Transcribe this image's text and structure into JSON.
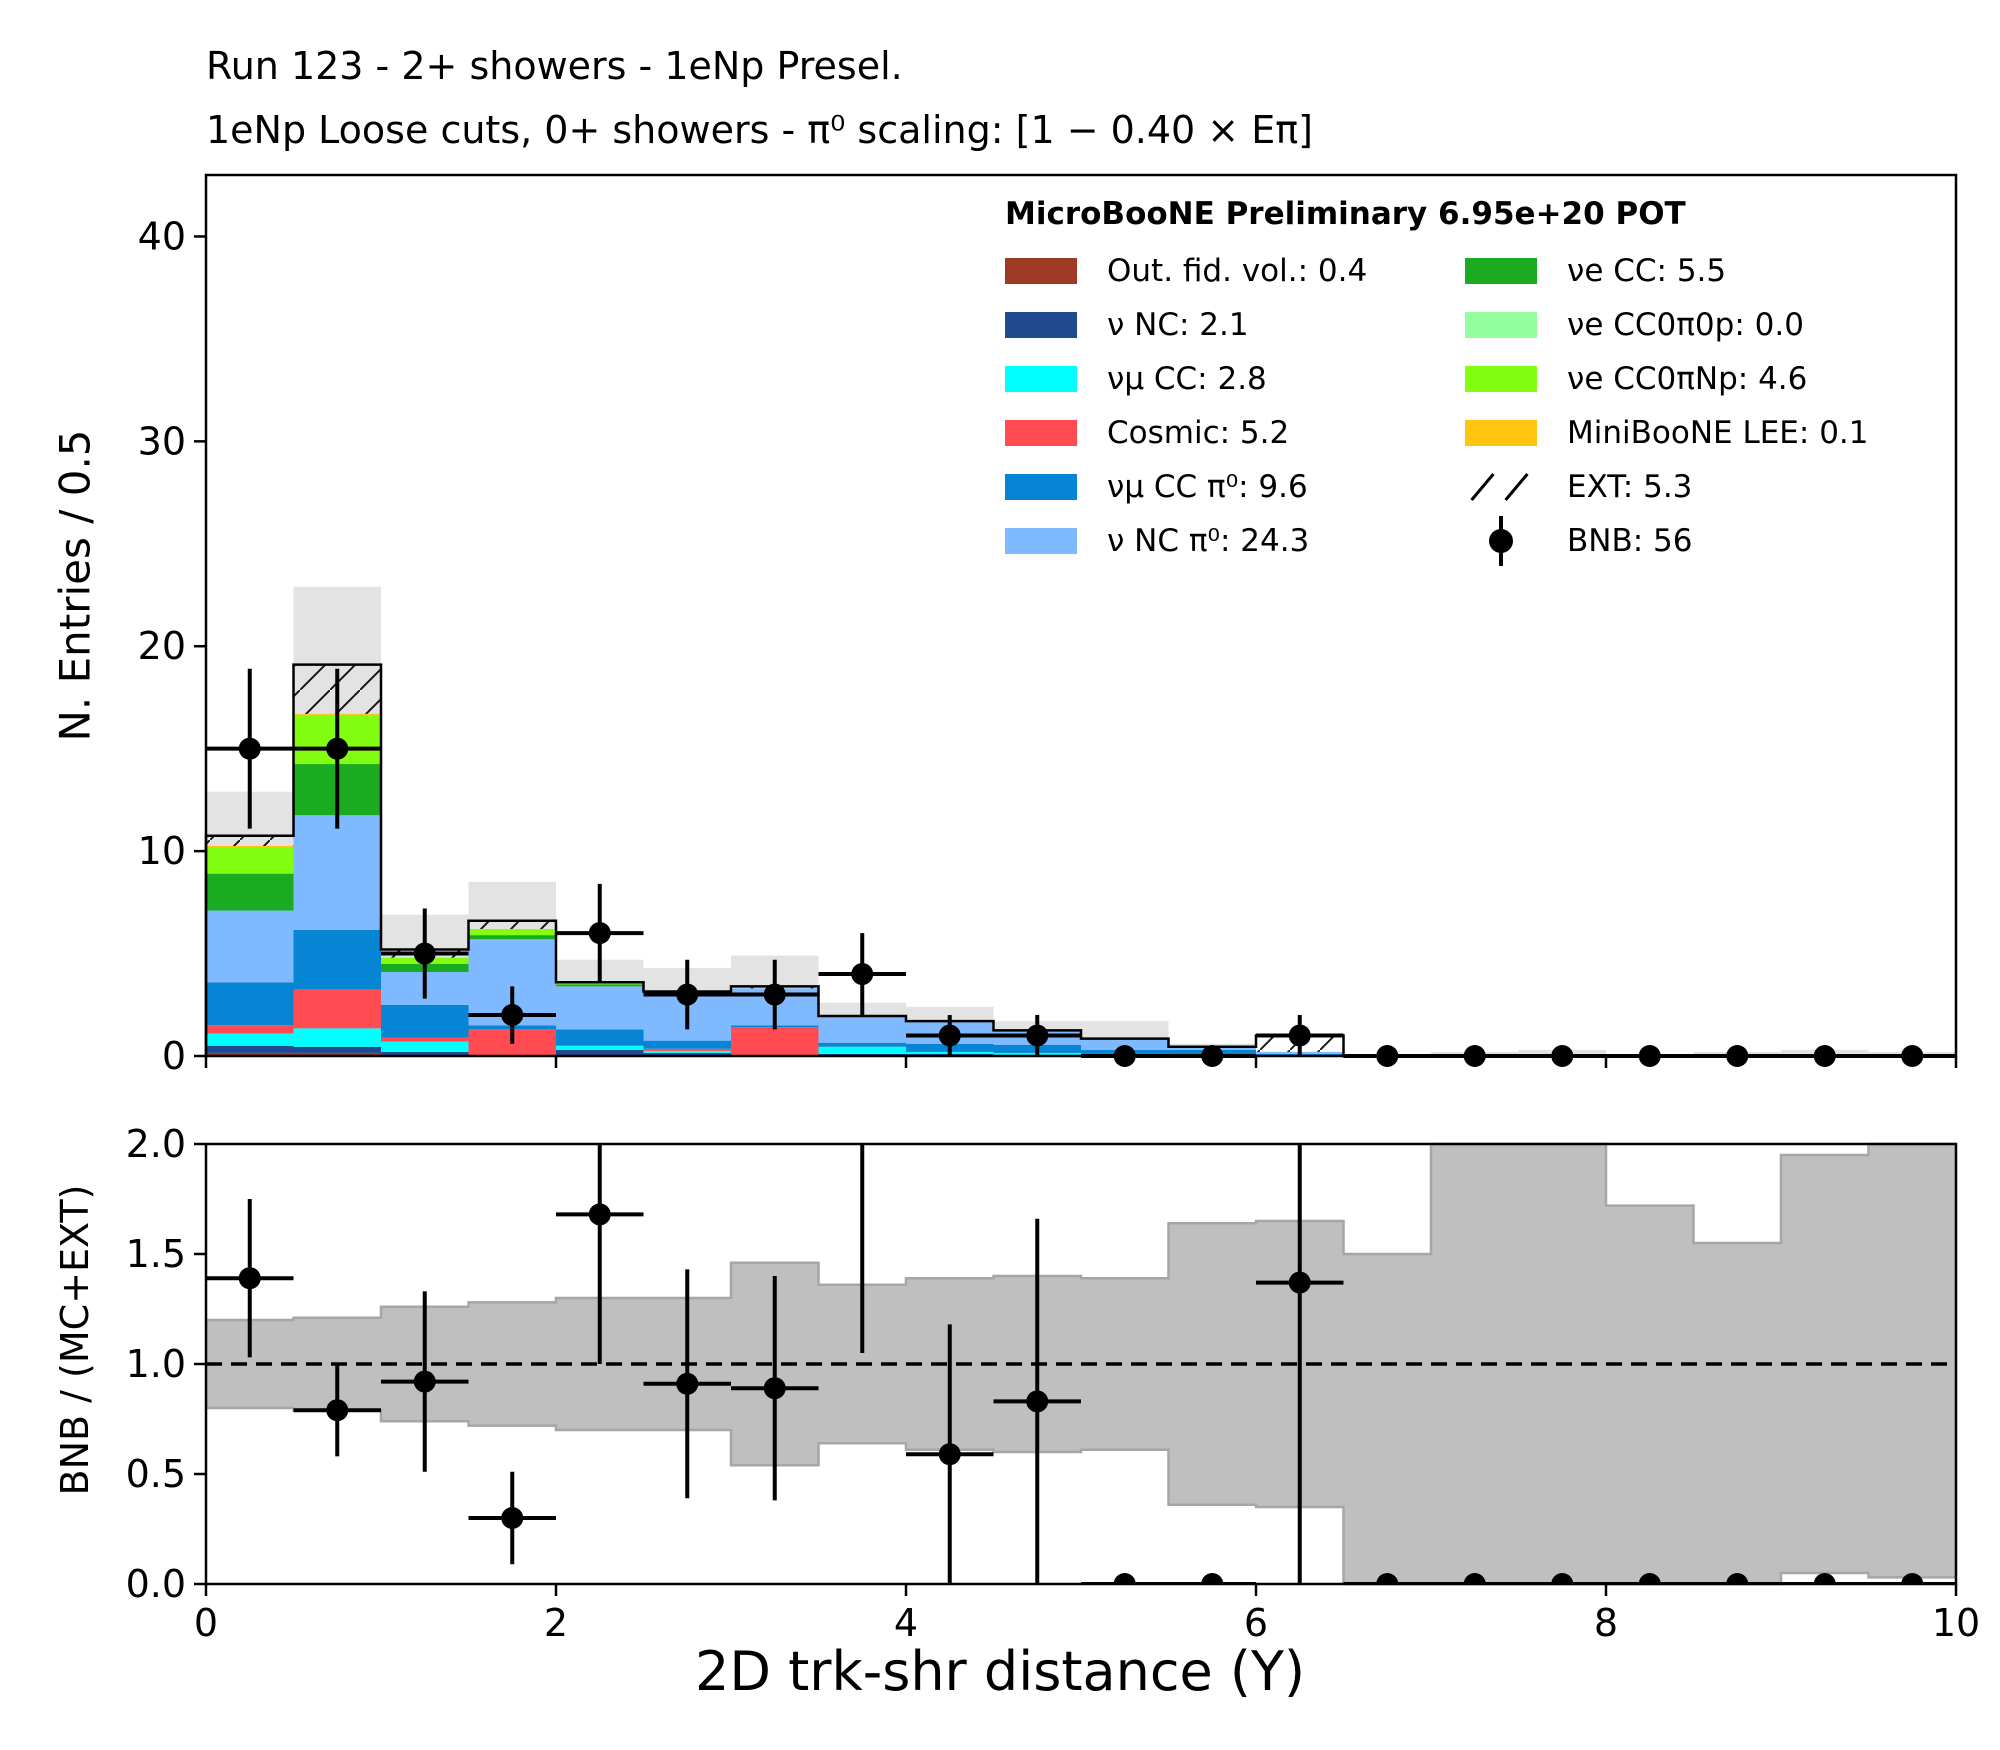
{
  "titles": {
    "line1": "Run 123 - 2+ showers - 1eNp Presel.",
    "line2": "1eNp Loose cuts, 0+ showers - π⁰ scaling: [1 − 0.40 × Eπ]"
  },
  "legend": {
    "header": "MicroBooNE Preliminary 6.95e+20 POT",
    "col1": [
      {
        "label": "Out. fid. vol.: 0.4",
        "color": "#9e3a26"
      },
      {
        "label": "ν NC: 2.1",
        "color": "#204a8f"
      },
      {
        "label": "νμ CC: 2.8",
        "color": "#00ffff"
      },
      {
        "label": "Cosmic: 5.2",
        "color": "#ff4b51"
      },
      {
        "label": "νμ CC π⁰: 9.6",
        "color": "#0685d4"
      },
      {
        "label": "ν NC π⁰: 24.3",
        "color": "#7fb9ff"
      }
    ],
    "col2": [
      {
        "label": "νe CC: 5.5",
        "color": "#1aab21"
      },
      {
        "label": "νe CC0π0p: 0.0",
        "color": "#93ff9f"
      },
      {
        "label": "νe CC0πNp: 4.6",
        "color": "#82ff10"
      },
      {
        "label": "MiniBooNE LEE: 0.1",
        "color": "#ffc50f"
      },
      {
        "label": "EXT: 5.3",
        "color": "hatch"
      },
      {
        "label": "BNB: 56",
        "color": "dot"
      }
    ]
  },
  "chart_data": [
    {
      "type": "bar",
      "stacked": true,
      "xlabel": "2D trk-shr distance (Y)",
      "ylabel": "N. Entries / 0.5",
      "xlim": [
        0,
        10
      ],
      "ylim": [
        0,
        43
      ],
      "yticks": [
        0,
        10,
        20,
        30,
        40
      ],
      "bin_edges": [
        0,
        0.5,
        1,
        1.5,
        2,
        2.5,
        3,
        3.5,
        4,
        4.5,
        5,
        5.5,
        6,
        6.5,
        7,
        7.5,
        8,
        8.5,
        9,
        9.5,
        10
      ],
      "series": [
        {
          "name": "Out. fid. vol.",
          "color": "#9e3a26",
          "values": [
            0.15,
            0.15,
            0,
            0,
            0,
            0,
            0,
            0,
            0,
            0,
            0,
            0,
            0.05,
            0,
            0,
            0,
            0,
            0,
            0,
            0
          ]
        },
        {
          "name": "ν NC",
          "color": "#204a8f",
          "values": [
            0.35,
            0.3,
            0.2,
            0,
            0.3,
            0.15,
            0,
            0.1,
            0.1,
            0.05,
            0.1,
            0,
            0,
            0,
            0,
            0,
            0,
            0,
            0,
            0
          ]
        },
        {
          "name": "νμ CC",
          "color": "#00ffff",
          "values": [
            0.6,
            0.9,
            0.5,
            0,
            0.2,
            0.1,
            0,
            0.35,
            0.1,
            0.1,
            0,
            0,
            0,
            0,
            0,
            0,
            0,
            0,
            0,
            0
          ]
        },
        {
          "name": "Cosmic",
          "color": "#ff4b51",
          "values": [
            0.4,
            1.9,
            0.2,
            1.3,
            0,
            0.1,
            1.4,
            0,
            0,
            0,
            0,
            0,
            0,
            0,
            0,
            0,
            0,
            0,
            0,
            0
          ]
        },
        {
          "name": "νμ CC π⁰",
          "color": "#0685d4",
          "values": [
            2.1,
            2.9,
            1.6,
            0.2,
            0.8,
            0.4,
            0.1,
            0.2,
            0.4,
            0.4,
            0.2,
            0.3,
            0.05,
            0,
            0,
            0,
            0,
            0,
            0,
            0
          ]
        },
        {
          "name": "ν NC π⁰",
          "color": "#7fb9ff",
          "values": [
            3.5,
            5.6,
            1.6,
            4.2,
            2.1,
            2.2,
            1.8,
            1.3,
            1.1,
            0.7,
            0.55,
            0.15,
            0.1,
            0,
            0,
            0,
            0,
            0,
            0,
            0
          ]
        },
        {
          "name": "νe CC",
          "color": "#1aab21",
          "values": [
            1.8,
            2.5,
            0.4,
            0.2,
            0.1,
            0,
            0,
            0,
            0,
            0,
            0,
            0,
            0,
            0,
            0,
            0,
            0,
            0,
            0,
            0
          ]
        },
        {
          "name": "νe CC0π0p",
          "color": "#93ff9f",
          "values": [
            0,
            0,
            0,
            0,
            0,
            0,
            0,
            0,
            0,
            0,
            0,
            0,
            0,
            0,
            0,
            0,
            0,
            0,
            0,
            0
          ]
        },
        {
          "name": "νe CC0πNp",
          "color": "#82ff10",
          "values": [
            1.3,
            2.4,
            0.3,
            0.3,
            0.1,
            0,
            0,
            0,
            0,
            0,
            0,
            0,
            0,
            0,
            0,
            0,
            0,
            0,
            0,
            0
          ]
        },
        {
          "name": "MiniBooNE LEE",
          "color": "#ffc50f",
          "values": [
            0.05,
            0.05,
            0,
            0,
            0,
            0,
            0,
            0,
            0,
            0,
            0,
            0,
            0,
            0,
            0,
            0,
            0,
            0,
            0,
            0
          ]
        },
        {
          "name": "EXT",
          "color": "hatch",
          "values": [
            0.5,
            2.4,
            0.4,
            0.4,
            0,
            0.2,
            0.1,
            0,
            0,
            0,
            0,
            0,
            0.8,
            0,
            0,
            0,
            0,
            0,
            0,
            0
          ]
        }
      ],
      "mc_unc_band": [
        12.9,
        22.9,
        6.9,
        8.5,
        4.7,
        4.3,
        4.9,
        2.6,
        2.4,
        1.7,
        1.7,
        0.6,
        1.0,
        0.1,
        0.2,
        0.3,
        0.1,
        0.2,
        0.3,
        0.2
      ],
      "data": {
        "name": "BNB",
        "x": [
          0.25,
          0.75,
          1.25,
          1.75,
          2.25,
          2.75,
          3.25,
          3.75,
          4.25,
          4.75,
          5.25,
          5.75,
          6.25,
          6.75,
          7.25,
          7.75,
          8.25,
          8.75,
          9.25,
          9.75
        ],
        "y": [
          15,
          15,
          5,
          2,
          6,
          3,
          3,
          4,
          1,
          1,
          0,
          0,
          1,
          0,
          0,
          0,
          0,
          0,
          0,
          0
        ],
        "yerr": [
          3.9,
          3.9,
          2.2,
          1.4,
          2.4,
          1.7,
          1.7,
          2.0,
          1.0,
          1.0,
          0,
          0,
          1.0,
          0,
          0,
          0,
          0,
          0,
          0,
          0
        ]
      }
    },
    {
      "type": "scatter",
      "xlabel": "2D trk-shr distance (Y)",
      "ylabel": "BNB / (MC+EXT)",
      "xlim": [
        0,
        10
      ],
      "ylim": [
        0,
        2
      ],
      "xticks": [
        0,
        2,
        4,
        6,
        8,
        10
      ],
      "yticks": [
        0.0,
        0.5,
        1.0,
        1.5,
        2.0
      ],
      "reference_line": 1.0,
      "band_low": [
        0.8,
        0.79,
        0.74,
        0.72,
        0.7,
        0.7,
        0.54,
        0.64,
        0.61,
        0.6,
        0.61,
        0.36,
        0.35,
        0.0,
        0.0,
        0.0,
        0.0,
        0.0,
        0.05,
        0.03
      ],
      "band_high": [
        1.2,
        1.21,
        1.26,
        1.28,
        1.3,
        1.3,
        1.46,
        1.36,
        1.39,
        1.4,
        1.39,
        1.64,
        1.65,
        1.5,
        2.0,
        2.0,
        1.72,
        1.55,
        1.95,
        2.0
      ],
      "ratio": {
        "x": [
          0.25,
          0.75,
          1.25,
          1.75,
          2.25,
          2.75,
          3.25,
          3.75,
          4.25,
          4.75,
          5.25,
          5.75,
          6.25,
          6.75,
          7.25,
          7.75,
          8.25,
          8.75,
          9.25,
          9.75
        ],
        "y": [
          1.39,
          0.79,
          0.92,
          0.3,
          1.68,
          0.91,
          0.89,
          2.2,
          0.59,
          0.83,
          0,
          0,
          1.37,
          0,
          0,
          0,
          0,
          0,
          0,
          0
        ],
        "yerr_low": [
          0.36,
          0.21,
          0.41,
          0.21,
          0.68,
          0.52,
          0.51,
          1.15,
          0.59,
          0.83,
          0,
          0,
          1.37,
          0,
          0,
          0,
          0,
          0,
          0,
          0
        ],
        "yerr_high": [
          0.36,
          0.21,
          0.41,
          0.21,
          0.68,
          0.52,
          0.51,
          1.15,
          0.59,
          0.83,
          0,
          0,
          1.37,
          0,
          0,
          0,
          0,
          0,
          0,
          0
        ]
      }
    }
  ]
}
